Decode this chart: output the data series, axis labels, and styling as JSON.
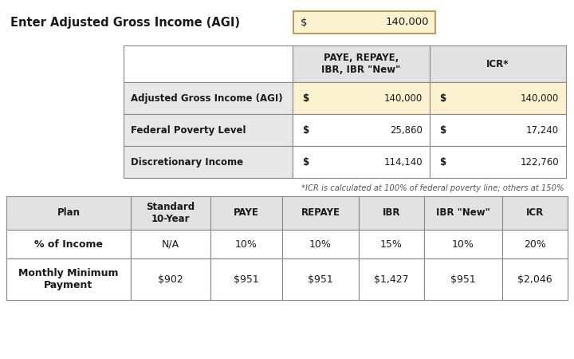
{
  "title_label": "Enter Adjusted Gross Income (AGI)",
  "agi_value": "140,000",
  "top_table": {
    "col_headers": [
      "",
      "PAYE, REPAYE,\nIBR, IBR \"New\"",
      "ICR*"
    ],
    "rows": [
      [
        "Adjusted Gross Income (AGI)",
        "$",
        "140,000",
        "$",
        "140,000"
      ],
      [
        "Federal Poverty Level",
        "$",
        "25,860",
        "$",
        "17,240"
      ],
      [
        "Discretionary Income",
        "$",
        "114,140",
        "$",
        "122,760"
      ]
    ],
    "row_labels": [
      "Adjusted Gross Income (AGI)",
      "Federal Poverty Level",
      "Discretionary Income"
    ]
  },
  "footnote": "*ICR is calculated at 100% of federal poverty line; others at 150%",
  "bottom_table": {
    "col_headers": [
      "Plan",
      "Standard\n10-Year",
      "PAYE",
      "REPAYE",
      "IBR",
      "IBR \"New\"",
      "ICR"
    ],
    "rows": [
      [
        "% of Income",
        "N/A",
        "10%",
        "10%",
        "15%",
        "10%",
        "20%"
      ],
      [
        "Monthly Minimum\nPayment",
        "$902",
        "$951",
        "$951",
        "$1,427",
        "$951",
        "$2,046"
      ]
    ]
  },
  "colors": {
    "header_bg": "#e2e2e2",
    "row_label_bg": "#e8e8e8",
    "agi_highlight": "#fdf2d0",
    "white": "#ffffff",
    "border": "#888888",
    "input_box_bg": "#fdf2d0",
    "input_box_border": "#b8a060"
  }
}
